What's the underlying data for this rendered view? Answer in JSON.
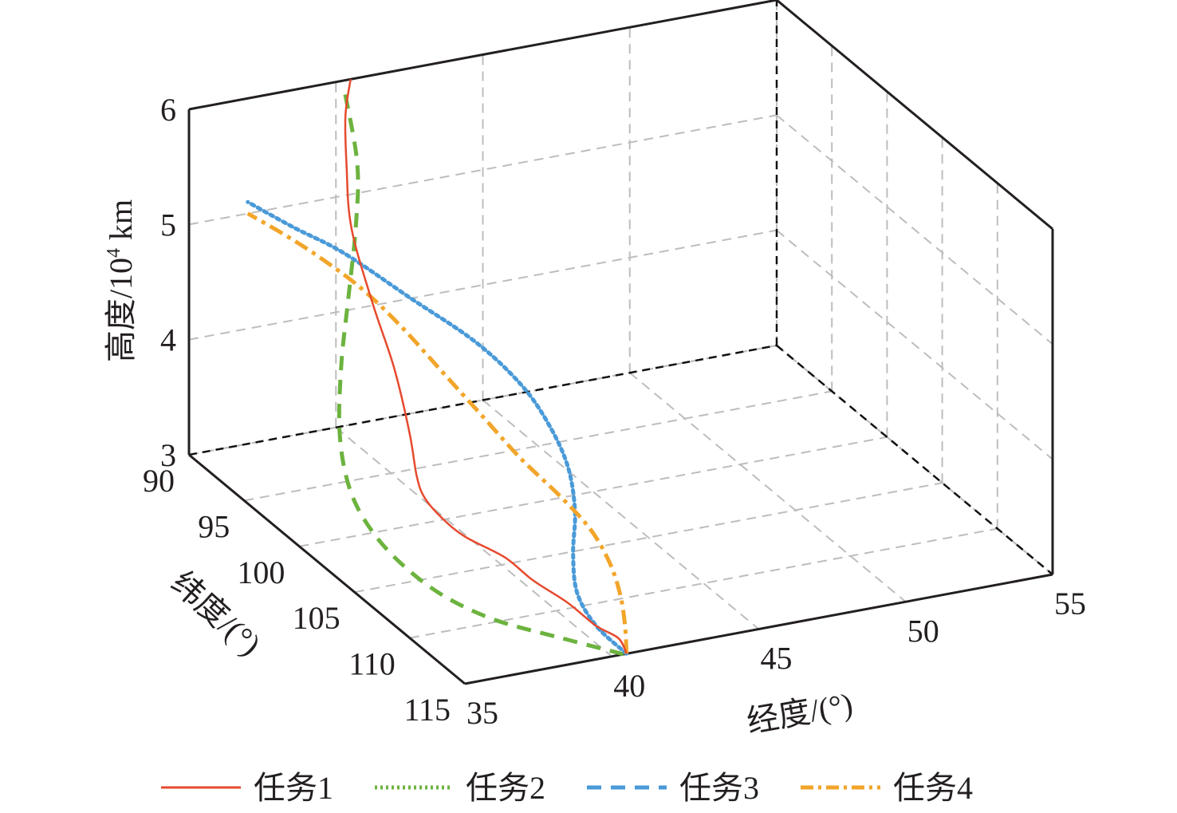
{
  "chart_data": {
    "type": "line3d",
    "title": "",
    "xlabel": "经度/(°)",
    "ylabel": "纬度/(°)",
    "zlabel_main": "高度/10",
    "zlabel_sup": "4",
    "zlabel_unit": " km",
    "xlim": [
      35,
      55
    ],
    "ylim": [
      90,
      115
    ],
    "zlim": [
      3,
      6
    ],
    "x_ticks": [
      "35",
      "40",
      "45",
      "50",
      "55"
    ],
    "y_ticks": [
      "90",
      "95",
      "100",
      "105",
      "110",
      "115"
    ],
    "z_ticks": [
      "3",
      "4",
      "5",
      "6"
    ],
    "grid": true,
    "legend_position": "bottom",
    "series": [
      {
        "name": "任务1",
        "color": "#e64a2e",
        "dash": "solid",
        "x": [
          40.5,
          40.6,
          40.2,
          39.8,
          39.2,
          38.8,
          38.0,
          37.6,
          37.4,
          37.5,
          38.0,
          38.6,
          39.0,
          39.4,
          39.8,
          40.1,
          40.5
        ],
        "y": [
          115.0,
          114.0,
          113.0,
          111.5,
          110.0,
          108.5,
          107.0,
          106.0,
          105.0,
          104.0,
          102.0,
          99.0,
          96.0,
          93.0,
          91.5,
          90.6,
          90.0
        ],
        "z": [
          3.0,
          3.05,
          3.1,
          3.2,
          3.3,
          3.4,
          3.5,
          3.6,
          3.7,
          3.8,
          4.0,
          4.3,
          4.6,
          5.0,
          5.4,
          5.75,
          6.0
        ]
      },
      {
        "name": "任务2",
        "color": "#6cb33f",
        "dash": "dashed",
        "x": [
          40.4,
          39.0,
          37.5,
          36.5,
          35.9,
          35.6,
          35.6,
          36.0,
          36.8,
          37.8,
          38.8,
          39.6,
          40.3
        ],
        "y": [
          115.0,
          113.0,
          111.0,
          109.0,
          107.0,
          105.0,
          103.0,
          101.0,
          99.0,
          97.0,
          95.0,
          93.0,
          90.0
        ],
        "z": [
          3.0,
          3.05,
          3.12,
          3.22,
          3.35,
          3.5,
          3.7,
          4.0,
          4.4,
          4.8,
          5.2,
          5.55,
          5.9
        ]
      },
      {
        "name": "任务3",
        "color": "#4a9ad8",
        "dash": "dotted",
        "x": [
          40.5,
          40.4,
          40.7,
          41.5,
          42.5,
          43.2,
          43.5,
          43.3,
          42.5,
          41.0,
          39.5,
          38.2,
          37.0
        ],
        "y": [
          115.0,
          112.5,
          110.0,
          107.5,
          105.0,
          102.5,
          100.0,
          98.0,
          96.0,
          94.0,
          92.0,
          91.0,
          90.0
        ],
        "z": [
          3.0,
          3.05,
          3.12,
          3.22,
          3.35,
          3.5,
          3.65,
          3.85,
          4.1,
          4.4,
          4.7,
          4.9,
          5.1
        ]
      },
      {
        "name": "任务4",
        "color": "#f2a52a",
        "dash": "dashdot",
        "x": [
          40.5,
          41.2,
          41.8,
          42.2,
          42.3,
          42.0,
          41.4,
          40.8,
          40.2,
          39.6,
          39.0,
          38.3,
          37.7,
          37.0
        ],
        "y": [
          115.0,
          113.0,
          111.0,
          109.0,
          107.0,
          105.0,
          103.0,
          101.0,
          99.0,
          97.0,
          95.0,
          93.0,
          91.5,
          90.0
        ],
        "z": [
          3.0,
          3.05,
          3.12,
          3.22,
          3.35,
          3.5,
          3.7,
          3.95,
          4.2,
          4.45,
          4.65,
          4.8,
          4.9,
          5.0
        ]
      }
    ]
  }
}
